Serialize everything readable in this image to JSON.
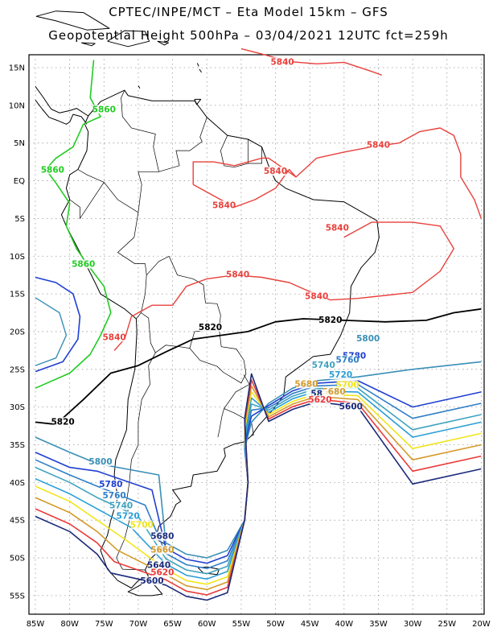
{
  "header": {
    "line1": "CPTEC/INPE/MCT –  Eta Model 15km – GFS",
    "line2": "Geopotential Height 500hPa – 03/04/2021 12UTC fct=259h"
  },
  "map": {
    "lat_ticks": [
      "15N",
      "10N",
      "5N",
      "EQ",
      "5S",
      "10S",
      "15S",
      "20S",
      "25S",
      "30S",
      "35S",
      "40S",
      "45S",
      "50S",
      "55S"
    ],
    "lon_ticks": [
      "85W",
      "80W",
      "75W",
      "70W",
      "65W",
      "60W",
      "55W",
      "50W",
      "45W",
      "40W",
      "35W",
      "30W",
      "25W",
      "20W"
    ],
    "colors": {
      "c5840": "#e8413c",
      "c5860": "#22cc22",
      "c5820": "#000000",
      "c5800": "#3a8fb7",
      "c5780": "#1f3fd1",
      "c5760": "#2f7fc8",
      "c5740": "#3fa3bf",
      "c5720": "#2a9ed6",
      "c5700": "#f2e51a",
      "c5680": "#d49a2a",
      "c5660": "#ea3a3a",
      "c5640": "#1a2a7a",
      "grid": "#9a9a9a",
      "coast": "#000000"
    },
    "contour_labels": [
      {
        "text": "5840",
        "lon": -49,
        "lat": 15.5,
        "color": "c5840"
      },
      {
        "text": "5840",
        "lon": -35,
        "lat": 4.5,
        "color": "c5840"
      },
      {
        "text": "5840",
        "lon": -50,
        "lat": 1,
        "color": "c5840"
      },
      {
        "text": "5840",
        "lon": -57.5,
        "lat": -3.5,
        "color": "c5840"
      },
      {
        "text": "5840",
        "lon": -41,
        "lat": -6.5,
        "color": "c5840"
      },
      {
        "text": "5840",
        "lon": -55.5,
        "lat": -12.7,
        "color": "c5840"
      },
      {
        "text": "5840",
        "lon": -44,
        "lat": -15.6,
        "color": "c5840"
      },
      {
        "text": "5840",
        "lon": -73.5,
        "lat": -21,
        "color": "c5840"
      },
      {
        "text": "5860",
        "lon": -75,
        "lat": 9.2,
        "color": "c5860"
      },
      {
        "text": "5860",
        "lon": -82.5,
        "lat": 1.2,
        "color": "c5860"
      },
      {
        "text": "5860",
        "lon": -78,
        "lat": -11.3,
        "color": "c5860"
      },
      {
        "text": "5820",
        "lon": -59.5,
        "lat": -19.7,
        "color": "c5820"
      },
      {
        "text": "5820",
        "lon": -42,
        "lat": -18.7,
        "color": "c5820"
      },
      {
        "text": "5820",
        "lon": -81,
        "lat": -32.2,
        "color": "c5820"
      },
      {
        "text": "5800",
        "lon": -36.5,
        "lat": -21.2,
        "color": "c5800"
      },
      {
        "text": "5780",
        "lon": -38.5,
        "lat": -23.5,
        "color": "c5780"
      },
      {
        "text": "5760",
        "lon": -39.5,
        "lat": -24,
        "color": "c5760"
      },
      {
        "text": "5740",
        "lon": -43,
        "lat": -24.7,
        "color": "c5740"
      },
      {
        "text": "5720",
        "lon": -40.5,
        "lat": -26,
        "color": "c5720"
      },
      {
        "text": "5700",
        "lon": -39.5,
        "lat": -27.3,
        "color": "c5700"
      },
      {
        "text": "5680",
        "lon": -45.5,
        "lat": -27.2,
        "color": "c5680"
      },
      {
        "text": "5680",
        "lon": -41.5,
        "lat": -28.2,
        "color": "c5680"
      },
      {
        "text": "58",
        "lon": -44,
        "lat": -28.5,
        "color": "c5640"
      },
      {
        "text": "5620",
        "lon": -43.5,
        "lat": -29.3,
        "color": "c5660"
      },
      {
        "text": "5600",
        "lon": -39,
        "lat": -30.2,
        "color": "c5640"
      },
      {
        "text": "5800",
        "lon": -75.5,
        "lat": -37.5,
        "color": "c5800"
      },
      {
        "text": "5780",
        "lon": -74,
        "lat": -40.5,
        "color": "c5780"
      },
      {
        "text": "5760",
        "lon": -73.5,
        "lat": -42,
        "color": "c5760"
      },
      {
        "text": "5740",
        "lon": -72.5,
        "lat": -43.3,
        "color": "c5740"
      },
      {
        "text": "5720",
        "lon": -71.5,
        "lat": -44.7,
        "color": "c5720"
      },
      {
        "text": "5700",
        "lon": -69.5,
        "lat": -45.9,
        "color": "c5700"
      },
      {
        "text": "5680",
        "lon": -66.5,
        "lat": -47.4,
        "color": "c5640"
      },
      {
        "text": "5660",
        "lon": -66.5,
        "lat": -49.2,
        "color": "c5680"
      },
      {
        "text": "5640",
        "lon": -67,
        "lat": -51.2,
        "color": "c5640"
      },
      {
        "text": "5620",
        "lon": -66.5,
        "lat": -52.2,
        "color": "c5660"
      },
      {
        "text": "5600",
        "lon": -68,
        "lat": -53.3,
        "color": "c5640"
      }
    ]
  }
}
